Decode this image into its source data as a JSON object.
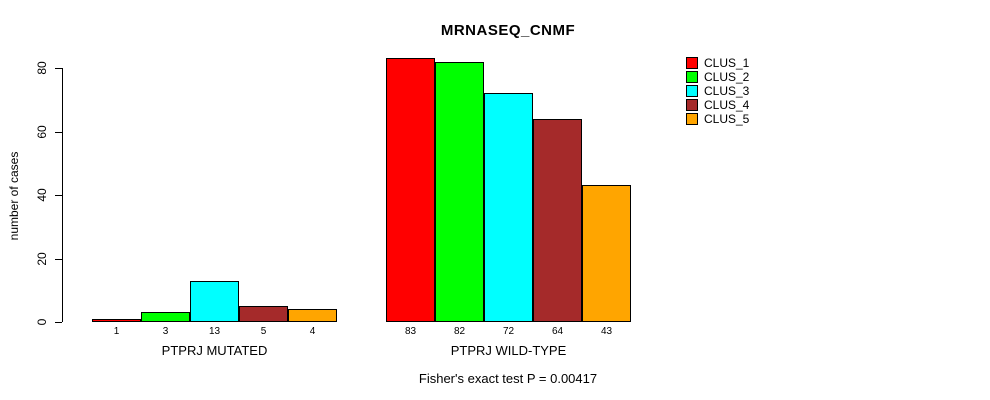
{
  "chart_data": {
    "type": "bar",
    "title": "MRNASEQ_CNMF",
    "ylabel": "number of cases",
    "yticks": [
      0,
      20,
      40,
      60,
      80
    ],
    "ylim": [
      0,
      85
    ],
    "grid": false,
    "legend_position": "top-right",
    "groups": [
      {
        "label": "PTPRJ MUTATED",
        "values": [
          1,
          3,
          13,
          5,
          4
        ]
      },
      {
        "label": "PTPRJ WILD-TYPE",
        "values": [
          83,
          82,
          72,
          64,
          43
        ]
      }
    ],
    "series": [
      {
        "name": "CLUS_1",
        "color": "#FF0000"
      },
      {
        "name": "CLUS_2",
        "color": "#00FF00"
      },
      {
        "name": "CLUS_3",
        "color": "#00FFFF"
      },
      {
        "name": "CLUS_4",
        "color": "#A52A2A"
      },
      {
        "name": "CLUS_5",
        "color": "#FFA500"
      }
    ],
    "annotation": "Fisher's exact test P = 0.00417"
  }
}
